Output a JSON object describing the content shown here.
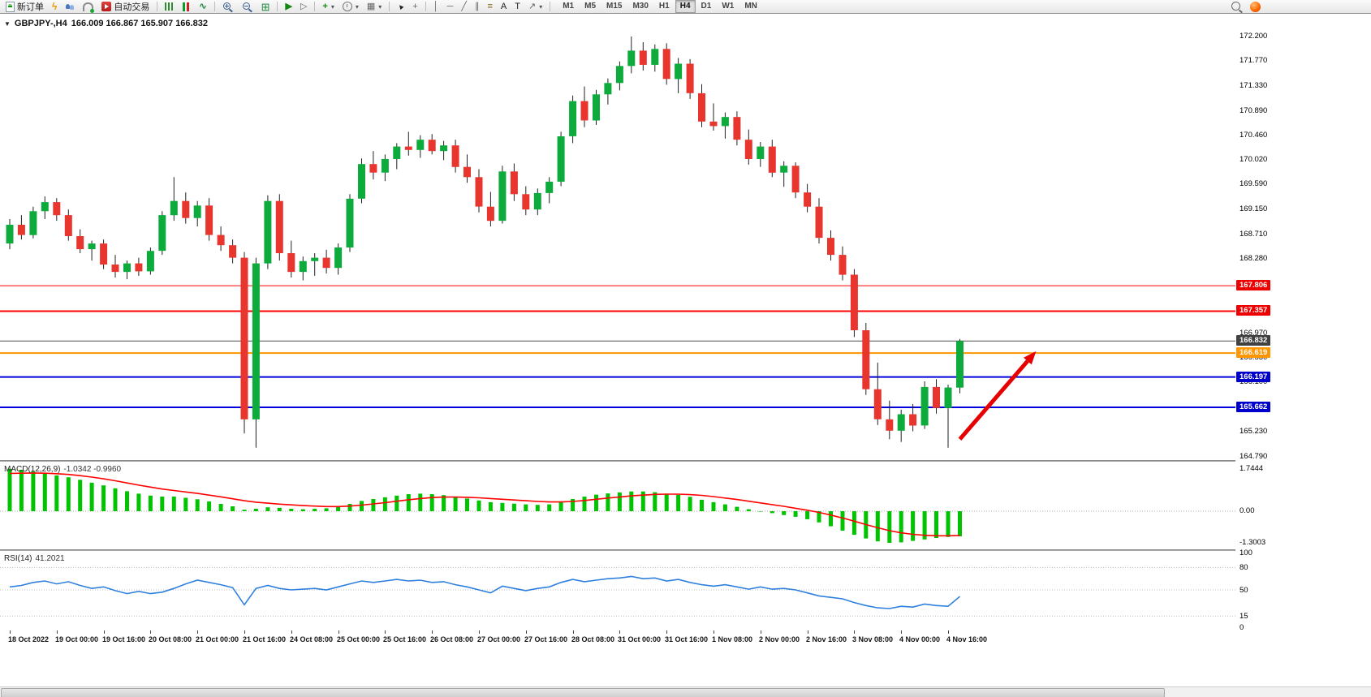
{
  "toolbar": {
    "new_order_label": "新订单",
    "auto_trading_label": "自动交易",
    "timeframes": [
      "M1",
      "M5",
      "M15",
      "M30",
      "H1",
      "H4",
      "D1",
      "W1",
      "MN"
    ],
    "active_timeframe": "H4"
  },
  "icons": {
    "chart_dropdown": "▼",
    "dropdown": "▾",
    "lightning": "ϟ",
    "line_chart": "∿",
    "tile_windows": "⊞",
    "auto_scroll": "▶",
    "chart_shift": "▷",
    "add_indicator": "+",
    "template": "▦",
    "cursor": "▲",
    "crosshair": "+",
    "vertical_line": "│",
    "horizontal_line": "─",
    "trendline": "╱",
    "channel": "∥",
    "fibonacci": "≡",
    "text_tool": "A",
    "label_tool": "T",
    "arrows_tool": "↗"
  },
  "chart": {
    "symbol_label": "GBPJPY-,H4",
    "ohlc_text": "166.009 166.867 165.907 166.832"
  },
  "macd": {
    "label": "MACD(12,26,9)",
    "values_text": "-1.0342 -0.9960",
    "scale_labels": [
      "1.7444",
      "0.00",
      "-1.3003"
    ]
  },
  "rsi": {
    "label": "RSI(14)",
    "value_text": "41.2021",
    "scale_labels": [
      "100",
      "80",
      "50",
      "15",
      "0"
    ]
  },
  "price_scale": {
    "labels": [
      "172.200",
      "171.770",
      "171.330",
      "170.890",
      "170.460",
      "170.020",
      "169.590",
      "169.150",
      "168.710",
      "168.280",
      "166.970",
      "166.530",
      "166.100",
      "165.230",
      "164.790"
    ],
    "tags": [
      {
        "text": "167.806",
        "bg": "#ee0000"
      },
      {
        "text": "167.357",
        "bg": "#ee0000"
      },
      {
        "text": "166.832",
        "bg": "#404040"
      },
      {
        "text": "166.619",
        "bg": "#ff9500"
      },
      {
        "text": "166.197",
        "bg": "#0000cc"
      },
      {
        "text": "165.662",
        "bg": "#0000cc"
      }
    ]
  },
  "time_axis": {
    "labels": [
      "18 Oct 2022",
      "19 Oct 00:00",
      "19 Oct 16:00",
      "20 Oct 08:00",
      "21 Oct 00:00",
      "21 Oct 16:00",
      "24 Oct 08:00",
      "25 Oct 00:00",
      "25 Oct 16:00",
      "26 Oct 08:00",
      "27 Oct 00:00",
      "27 Oct 16:00",
      "28 Oct 08:00",
      "31 Oct 00:00",
      "31 Oct 16:00",
      "1 Nov 08:00",
      "2 Nov 00:00",
      "2 Nov 16:00",
      "3 Nov 08:00",
      "4 Nov 00:00",
      "4 Nov 16:00"
    ]
  },
  "chart_data": {
    "type": "candlestick",
    "symbol": "GBPJPY",
    "timeframe": "H4",
    "ylim": [
      164.79,
      172.2
    ],
    "bull_color": "#0cab3c",
    "bear_color": "#e8352e",
    "wick_color": "#222222",
    "candles": [
      [
        168.55,
        168.98,
        168.45,
        168.88
      ],
      [
        168.88,
        169.05,
        168.62,
        168.7
      ],
      [
        168.7,
        169.2,
        168.64,
        169.12
      ],
      [
        169.12,
        169.38,
        168.98,
        169.28
      ],
      [
        169.28,
        169.35,
        168.95,
        169.05
      ],
      [
        169.05,
        169.15,
        168.6,
        168.68
      ],
      [
        168.68,
        168.8,
        168.38,
        168.45
      ],
      [
        168.45,
        168.6,
        168.25,
        168.55
      ],
      [
        168.55,
        168.62,
        168.1,
        168.18
      ],
      [
        168.18,
        168.35,
        167.95,
        168.05
      ],
      [
        168.05,
        168.25,
        167.92,
        168.2
      ],
      [
        168.2,
        168.3,
        167.98,
        168.06
      ],
      [
        168.06,
        168.48,
        168.0,
        168.42
      ],
      [
        168.42,
        169.12,
        168.35,
        169.05
      ],
      [
        169.05,
        169.72,
        168.95,
        169.3
      ],
      [
        169.3,
        169.45,
        168.9,
        169.0
      ],
      [
        169.0,
        169.3,
        168.85,
        169.22
      ],
      [
        169.22,
        169.35,
        168.6,
        168.7
      ],
      [
        168.7,
        168.85,
        168.42,
        168.52
      ],
      [
        168.52,
        168.62,
        168.2,
        168.3
      ],
      [
        168.3,
        168.4,
        165.2,
        165.45
      ],
      [
        165.45,
        168.3,
        164.95,
        168.2
      ],
      [
        168.2,
        169.4,
        168.1,
        169.3
      ],
      [
        169.3,
        169.42,
        168.25,
        168.38
      ],
      [
        168.38,
        168.6,
        167.95,
        168.05
      ],
      [
        168.05,
        168.32,
        167.9,
        168.24
      ],
      [
        168.24,
        168.38,
        167.98,
        168.3
      ],
      [
        168.3,
        168.44,
        168.02,
        168.12
      ],
      [
        168.12,
        168.55,
        168.0,
        168.48
      ],
      [
        168.48,
        169.42,
        168.4,
        169.34
      ],
      [
        169.34,
        170.05,
        169.26,
        169.95
      ],
      [
        169.95,
        170.18,
        169.68,
        169.8
      ],
      [
        169.8,
        170.12,
        169.65,
        170.04
      ],
      [
        170.04,
        170.32,
        169.86,
        170.26
      ],
      [
        170.26,
        170.52,
        170.1,
        170.2
      ],
      [
        170.2,
        170.46,
        170.06,
        170.38
      ],
      [
        170.38,
        170.48,
        170.12,
        170.18
      ],
      [
        170.18,
        170.36,
        170.02,
        170.28
      ],
      [
        170.28,
        170.38,
        169.8,
        169.9
      ],
      [
        169.9,
        170.12,
        169.62,
        169.72
      ],
      [
        169.72,
        169.86,
        169.1,
        169.2
      ],
      [
        169.2,
        169.46,
        168.85,
        168.95
      ],
      [
        168.95,
        169.92,
        168.9,
        169.82
      ],
      [
        169.82,
        169.96,
        169.3,
        169.42
      ],
      [
        169.42,
        169.56,
        169.05,
        169.15
      ],
      [
        169.15,
        169.52,
        169.05,
        169.44
      ],
      [
        169.44,
        169.72,
        169.26,
        169.64
      ],
      [
        169.64,
        170.52,
        169.56,
        170.44
      ],
      [
        170.44,
        171.16,
        170.32,
        171.06
      ],
      [
        171.06,
        171.32,
        170.6,
        170.72
      ],
      [
        170.72,
        171.26,
        170.64,
        171.18
      ],
      [
        171.18,
        171.46,
        171.0,
        171.38
      ],
      [
        171.38,
        171.76,
        171.25,
        171.68
      ],
      [
        171.68,
        172.2,
        171.55,
        171.95
      ],
      [
        171.95,
        172.1,
        171.6,
        171.7
      ],
      [
        171.7,
        172.06,
        171.58,
        171.98
      ],
      [
        171.98,
        172.08,
        171.35,
        171.45
      ],
      [
        171.45,
        171.82,
        171.2,
        171.72
      ],
      [
        171.72,
        171.8,
        171.1,
        171.2
      ],
      [
        171.2,
        171.36,
        170.6,
        170.7
      ],
      [
        170.7,
        171.02,
        170.54,
        170.62
      ],
      [
        170.62,
        170.86,
        170.4,
        170.78
      ],
      [
        170.78,
        170.88,
        170.28,
        170.38
      ],
      [
        170.38,
        170.56,
        169.94,
        170.04
      ],
      [
        170.04,
        170.34,
        169.9,
        170.26
      ],
      [
        170.26,
        170.38,
        169.72,
        169.8
      ],
      [
        169.8,
        170.0,
        169.55,
        169.92
      ],
      [
        169.92,
        169.98,
        169.35,
        169.45
      ],
      [
        169.45,
        169.6,
        169.1,
        169.2
      ],
      [
        169.2,
        169.35,
        168.55,
        168.65
      ],
      [
        168.65,
        168.78,
        168.25,
        168.35
      ],
      [
        168.35,
        168.5,
        167.9,
        168.0
      ],
      [
        168.0,
        168.1,
        166.9,
        167.02
      ],
      [
        167.02,
        167.15,
        165.88,
        165.98
      ],
      [
        165.98,
        166.45,
        165.35,
        165.45
      ],
      [
        165.45,
        165.78,
        165.1,
        165.25
      ],
      [
        165.25,
        165.62,
        165.05,
        165.54
      ],
      [
        165.54,
        165.72,
        165.24,
        165.34
      ],
      [
        165.34,
        166.12,
        165.28,
        166.02
      ],
      [
        166.02,
        166.16,
        165.55,
        165.65
      ],
      [
        165.65,
        166.06,
        164.95,
        166.01
      ],
      [
        166.009,
        166.867,
        165.907,
        166.832
      ]
    ],
    "hlines": [
      {
        "price": 167.806,
        "color": "#ff0000",
        "width": 1
      },
      {
        "price": 167.357,
        "color": "#ff0000",
        "width": 2
      },
      {
        "price": 166.832,
        "color": "#4d4d4d",
        "width": 1
      },
      {
        "price": 166.619,
        "color": "#ff9500",
        "width": 2
      },
      {
        "price": 166.197,
        "color": "#0000dd",
        "width": 2
      },
      {
        "price": 165.662,
        "color": "#0000dd",
        "width": 2
      }
    ],
    "arrow": {
      "from_bar": 81,
      "from_price": 165.1,
      "to_bar": 87.5,
      "to_price": 166.65,
      "color": "#e60000"
    },
    "macd": {
      "histogram_color": "#00c400",
      "signal_color": "#ff0000",
      "scale": [
        1.7444,
        0,
        -1.3003
      ],
      "histogram": [
        1.74,
        1.7,
        1.63,
        1.56,
        1.47,
        1.39,
        1.29,
        1.17,
        1.06,
        0.94,
        0.82,
        0.72,
        0.64,
        0.6,
        0.6,
        0.55,
        0.49,
        0.4,
        0.3,
        0.2,
        0.06,
        0.1,
        0.16,
        0.14,
        0.1,
        0.08,
        0.1,
        0.12,
        0.18,
        0.3,
        0.42,
        0.5,
        0.57,
        0.64,
        0.7,
        0.72,
        0.7,
        0.66,
        0.6,
        0.52,
        0.44,
        0.37,
        0.34,
        0.31,
        0.28,
        0.26,
        0.28,
        0.38,
        0.5,
        0.6,
        0.68,
        0.73,
        0.77,
        0.81,
        0.81,
        0.78,
        0.72,
        0.67,
        0.59,
        0.47,
        0.37,
        0.28,
        0.18,
        0.08,
        0.0,
        -0.08,
        -0.16,
        -0.23,
        -0.33,
        -0.46,
        -0.62,
        -0.8,
        -0.97,
        -1.12,
        -1.24,
        -1.3,
        -1.28,
        -1.22,
        -1.16,
        -1.1,
        -1.06,
        -1.0342
      ],
      "signal": [
        1.55,
        1.56,
        1.57,
        1.56,
        1.54,
        1.51,
        1.46,
        1.4,
        1.33,
        1.25,
        1.16,
        1.07,
        0.99,
        0.91,
        0.85,
        0.79,
        0.73,
        0.66,
        0.59,
        0.51,
        0.43,
        0.37,
        0.33,
        0.29,
        0.26,
        0.23,
        0.21,
        0.19,
        0.19,
        0.21,
        0.25,
        0.3,
        0.35,
        0.41,
        0.47,
        0.52,
        0.56,
        0.58,
        0.58,
        0.57,
        0.55,
        0.52,
        0.49,
        0.46,
        0.43,
        0.4,
        0.38,
        0.38,
        0.4,
        0.44,
        0.49,
        0.54,
        0.58,
        0.63,
        0.66,
        0.69,
        0.7,
        0.7,
        0.68,
        0.65,
        0.6,
        0.54,
        0.48,
        0.41,
        0.34,
        0.27,
        0.2,
        0.12,
        0.04,
        -0.05,
        -0.16,
        -0.28,
        -0.41,
        -0.55,
        -0.68,
        -0.8,
        -0.89,
        -0.95,
        -0.99,
        -1.01,
        -1.01,
        -0.996
      ]
    },
    "rsi": {
      "color": "#2f80de",
      "levels": [
        80,
        50,
        15
      ],
      "values": [
        54,
        56,
        60,
        62,
        58,
        61,
        56,
        52,
        54,
        49,
        45,
        48,
        45,
        47,
        52,
        58,
        63,
        60,
        57,
        53,
        30,
        52,
        56,
        52,
        50,
        51,
        52,
        50,
        54,
        58,
        62,
        60,
        62,
        64,
        62,
        63,
        60,
        61,
        57,
        54,
        50,
        46,
        55,
        52,
        49,
        52,
        54,
        60,
        64,
        61,
        63,
        65,
        66,
        68,
        65,
        66,
        62,
        64,
        60,
        57,
        55,
        57,
        54,
        51,
        54,
        51,
        52,
        50,
        46,
        42,
        40,
        38,
        33,
        29,
        26,
        25,
        28,
        27,
        31,
        29,
        28,
        41.2
      ]
    }
  }
}
